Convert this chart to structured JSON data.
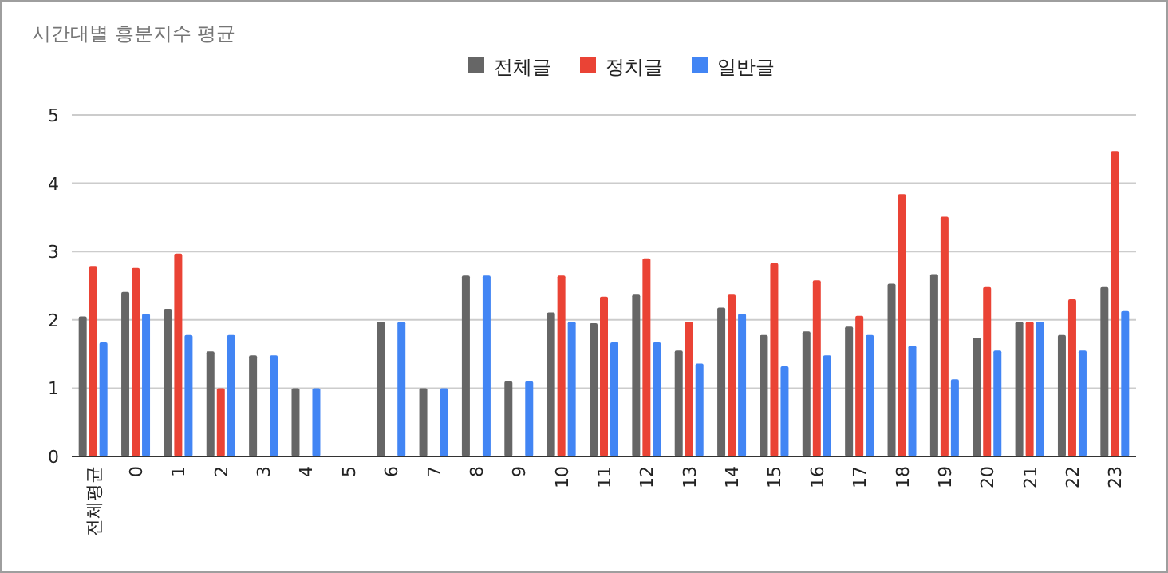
{
  "chart_data": {
    "type": "bar",
    "title": "시간대별 흥분지수 평균",
    "categories": [
      "전체평균",
      "0",
      "1",
      "2",
      "3",
      "4",
      "5",
      "6",
      "7",
      "8",
      "9",
      "10",
      "11",
      "12",
      "13",
      "14",
      "15",
      "16",
      "17",
      "18",
      "19",
      "20",
      "21",
      "22",
      "23"
    ],
    "series": [
      {
        "name": "전체글",
        "color": "#666666",
        "values": [
          2.05,
          2.41,
          2.16,
          1.54,
          1.48,
          1.0,
          null,
          1.97,
          1.0,
          2.65,
          1.1,
          2.11,
          1.95,
          2.37,
          1.55,
          2.18,
          1.78,
          1.83,
          1.9,
          2.53,
          2.67,
          1.74,
          1.97,
          1.78,
          2.48
        ]
      },
      {
        "name": "정치글",
        "color": "#ea4335",
        "values": [
          2.79,
          2.76,
          2.97,
          1.0,
          null,
          null,
          null,
          null,
          null,
          null,
          null,
          2.65,
          2.34,
          2.9,
          1.97,
          2.37,
          2.83,
          2.58,
          2.06,
          3.84,
          3.51,
          2.48,
          1.97,
          2.3,
          4.47
        ]
      },
      {
        "name": "일반글",
        "color": "#4285f4",
        "values": [
          1.67,
          2.09,
          1.78,
          1.78,
          1.48,
          1.0,
          null,
          1.97,
          1.0,
          2.65,
          1.1,
          1.97,
          1.67,
          1.67,
          1.36,
          2.09,
          1.32,
          1.48,
          1.78,
          1.62,
          1.13,
          1.55,
          1.97,
          1.55,
          2.13
        ]
      }
    ],
    "ylim": [
      0,
      5
    ],
    "yticks": [
      0,
      1,
      2,
      3,
      4,
      5
    ],
    "grid": "y",
    "legend": "top"
  }
}
